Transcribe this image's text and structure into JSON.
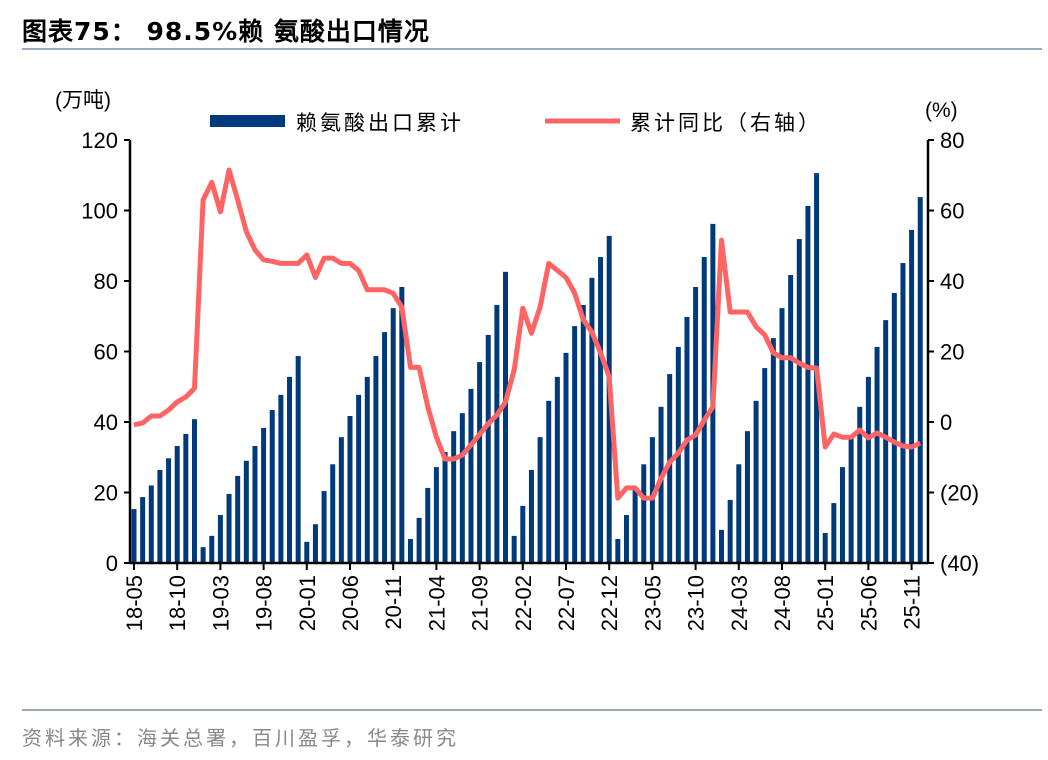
{
  "title": "图表75：  98.5%赖 氨酸出口情况",
  "source": "资料来源：海关总署，百川盈孚，华泰研究",
  "chart_data": {
    "type": "bar+line",
    "left_unit": "(万吨)",
    "right_unit": "(%)",
    "ylim_left": [
      0,
      120
    ],
    "ylim_right": [
      -40,
      80
    ],
    "left_ticks": [
      "0",
      "20",
      "40",
      "60",
      "80",
      "100",
      "120"
    ],
    "right_ticks": [
      "(40)",
      "(20)",
      "0",
      "20",
      "40",
      "60",
      "80"
    ],
    "x_tick_labels": [
      "18-05",
      "18-10",
      "19-03",
      "19-08",
      "20-01",
      "20-06",
      "20-11",
      "21-04",
      "21-09",
      "22-02",
      "22-07",
      "22-12",
      "23-05",
      "23-10",
      "24-03",
      "24-08",
      "25-01",
      "25-06",
      "25-11"
    ],
    "legend_position": "top",
    "colors": {
      "bar": "#003A7A",
      "line": "#FF6464"
    },
    "series": [
      {
        "name": "赖氨酸出口累计",
        "type": "bar",
        "axis": "left",
        "values": [
          15.3,
          18.7,
          22,
          26.4,
          29.7,
          33.2,
          36.6,
          40.8,
          4.5,
          7.7,
          13.6,
          19.6,
          24.7,
          29,
          33.2,
          38.3,
          43.4,
          47.7,
          52.8,
          58.7,
          6,
          11,
          20.4,
          28,
          35.7,
          41.7,
          47.7,
          52.8,
          58.7,
          65.5,
          72.3,
          78.3,
          6.8,
          12.8,
          21.3,
          27.2,
          31.5,
          37.4,
          42.5,
          49.4,
          57,
          64.7,
          73.2,
          82.6,
          7.7,
          16.2,
          26.4,
          35.7,
          46,
          52.8,
          59.6,
          67.2,
          73.2,
          80.9,
          86.8,
          92.8,
          6.8,
          13.6,
          21,
          28,
          35.7,
          44.3,
          53.6,
          61.3,
          69.8,
          78.3,
          86.8,
          96.2,
          9.4,
          17.9,
          28,
          37.4,
          46,
          55.3,
          63.8,
          72.3,
          81.7,
          91.9,
          101.3,
          110.6,
          8.5,
          17,
          27.2,
          35.5,
          44.3,
          52.8,
          61.3,
          68.9,
          76.6,
          85.1,
          94.5,
          103.8
        ]
      },
      {
        "name": "累计同比（右轴）",
        "type": "line",
        "axis": "right",
        "values": [
          -0.8,
          -0.3,
          1.7,
          1.7,
          3.4,
          5.7,
          7.1,
          9.6,
          63,
          68,
          59.6,
          71.5,
          63,
          54,
          48.8,
          46,
          45.6,
          45,
          45,
          45,
          47.4,
          41,
          46.5,
          46.5,
          45,
          45,
          43,
          37.5,
          37.5,
          37.5,
          36.5,
          32.6,
          15.5,
          15.5,
          4.3,
          -4.3,
          -10.5,
          -10.5,
          -9.4,
          -6.5,
          -3.5,
          -0.5,
          2,
          5.7,
          14.8,
          32.3,
          25.2,
          32.6,
          45,
          43,
          41,
          36.6,
          29,
          25.5,
          19.6,
          12.8,
          -21.6,
          -18.7,
          -18.7,
          -21.6,
          -21.6,
          -16,
          -11.4,
          -8.8,
          -5.1,
          -3.7,
          0.5,
          4.3,
          51.6,
          31.2,
          31.2,
          31.2,
          27,
          24.7,
          19.6,
          18.2,
          18.2,
          16.7,
          15.5,
          15.3,
          -7.1,
          -3.4,
          -4.3,
          -4.3,
          -2.3,
          -4.5,
          -3.1,
          -4.3,
          -5.7,
          -6.8,
          -7.1,
          -6
        ]
      }
    ]
  }
}
